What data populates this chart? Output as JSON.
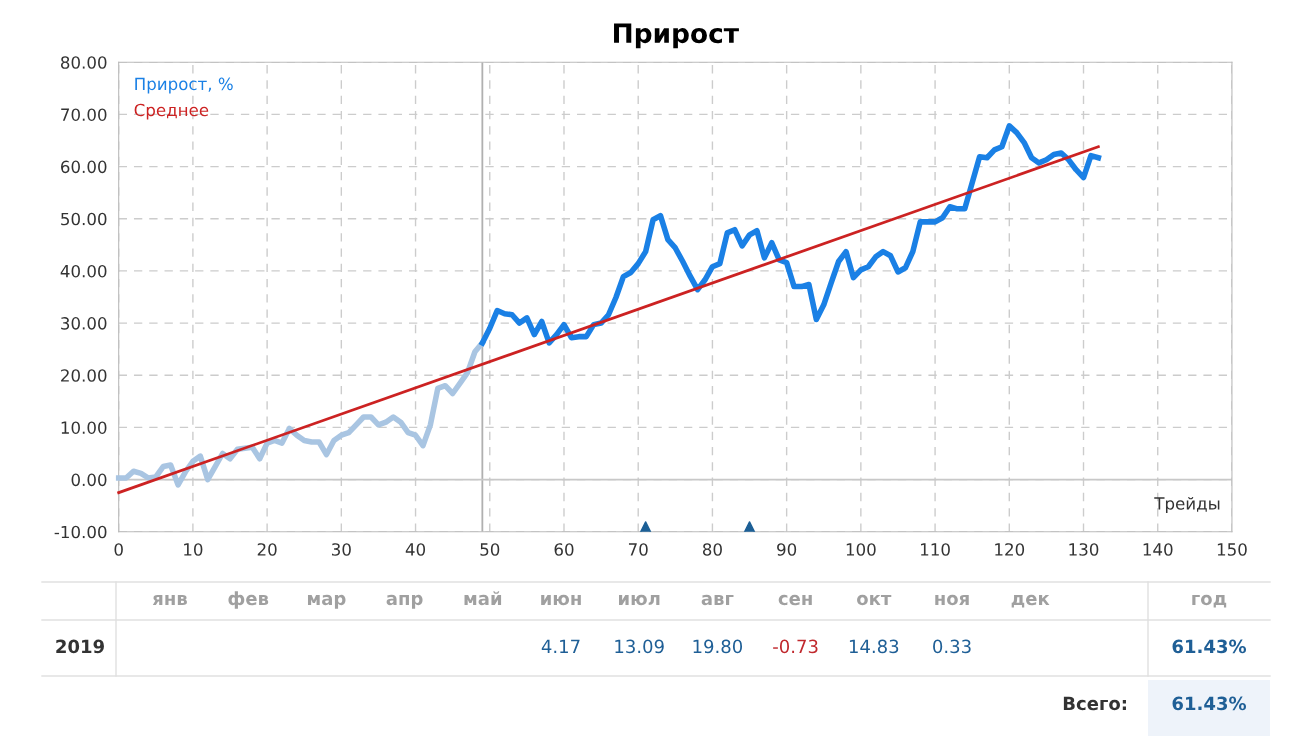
{
  "chart_data": {
    "type": "line",
    "title": "Прирост",
    "xlabel": "Трейды",
    "xlim": [
      0,
      150
    ],
    "xticks": [
      0,
      10,
      20,
      30,
      40,
      50,
      60,
      70,
      80,
      90,
      100,
      110,
      120,
      130,
      140,
      150
    ],
    "ylim": [
      -10,
      80
    ],
    "yticks": [
      {
        "value": -10,
        "label": "-10.00"
      },
      {
        "value": 0,
        "label": "0.00"
      },
      {
        "value": 10,
        "label": "10.00"
      },
      {
        "value": 20,
        "label": "20.00"
      },
      {
        "value": 30,
        "label": "30.00"
      },
      {
        "value": 40,
        "label": "40.00"
      },
      {
        "value": 50,
        "label": "50.00"
      },
      {
        "value": 60,
        "label": "60.00"
      },
      {
        "value": 70,
        "label": "70.00"
      },
      {
        "value": 80,
        "label": "80.00"
      }
    ],
    "grid": true,
    "legend": "top left",
    "marker": "none",
    "line_style": "solid",
    "ref_lines": [
      {
        "axis": "x",
        "value": 49,
        "color": "#b0b0b0"
      },
      {
        "axis": "y",
        "value": 0,
        "color": "#c8c8c8"
      }
    ],
    "series": [
      {
        "color": "#a9c5e2",
        "x": [
          0,
          1,
          2,
          3,
          4,
          5,
          6,
          7,
          8,
          9,
          10,
          11,
          12,
          13,
          14,
          15,
          16,
          17,
          18,
          19,
          20,
          21,
          22,
          23,
          24,
          25,
          26,
          27,
          28,
          29,
          30,
          31,
          32,
          33,
          34,
          35,
          36,
          37,
          38,
          39,
          40,
          41,
          42,
          43,
          44,
          45,
          46,
          47,
          48,
          49
        ],
        "values": [
          0.3,
          0.3,
          1.6,
          1.2,
          0.3,
          0.5,
          2.5,
          2.8,
          -1,
          1.5,
          3.5,
          4.5,
          0,
          2.5,
          5,
          4,
          5.8,
          6,
          6.2,
          4,
          7,
          7.5,
          7,
          9.8,
          8.5,
          7.5,
          7.2,
          7.2,
          4.8,
          7.5,
          8.5,
          9,
          10.5,
          12,
          12,
          10.5,
          11,
          12,
          11,
          9,
          8.5,
          6.5,
          10.5,
          17.5,
          18,
          16.5,
          18.5,
          20.5,
          24.5,
          26.2
        ]
      },
      {
        "name": "Прирост, %",
        "color": "#1a80e5",
        "x": [
          49,
          50,
          51,
          52,
          53,
          54,
          55,
          56,
          57,
          58,
          59,
          60,
          61,
          62,
          63,
          64,
          65,
          66,
          67,
          68,
          69,
          70,
          71,
          72,
          73,
          74,
          75,
          76,
          77,
          78,
          79,
          80,
          81,
          82,
          83,
          84,
          85,
          86,
          87,
          88,
          89,
          90,
          91,
          92,
          93,
          94,
          95,
          96,
          97,
          98,
          99,
          100,
          101,
          102,
          103,
          104,
          105,
          106,
          107,
          108,
          109,
          110,
          111,
          112,
          113,
          114,
          115,
          116,
          117,
          118,
          119,
          120,
          121,
          122,
          123,
          124,
          125,
          126,
          127,
          128,
          129,
          130,
          131,
          132
        ],
        "values": [
          26.2,
          29,
          32.4,
          31.8,
          31.6,
          30,
          31,
          27.8,
          30.3,
          26.2,
          27.8,
          29.7,
          27.2,
          27.4,
          27.4,
          29.7,
          30,
          31.6,
          34.9,
          38.9,
          39.7,
          41.4,
          43.7,
          49.8,
          50.6,
          46,
          44.4,
          41.8,
          39,
          36.4,
          38.3,
          40.8,
          41.4,
          47.3,
          47.9,
          44.8,
          46.9,
          47.7,
          42.5,
          45.4,
          42.1,
          41.6,
          37,
          37,
          37.4,
          30.7,
          33.5,
          37.7,
          41.8,
          43.7,
          38.7,
          40.2,
          40.8,
          42.7,
          43.7,
          42.9,
          39.8,
          40.6,
          43.7,
          49.4,
          49.4,
          49.4,
          50.2,
          52.3,
          51.9,
          51.9,
          56.9,
          61.9,
          61.7,
          63.2,
          63.8,
          67.8,
          66.5,
          64.6,
          61.7,
          60.7,
          61.3,
          62.3,
          62.6,
          61.3,
          59.4,
          57.9,
          62.1,
          61.7
        ]
      },
      {
        "name": "Среднее",
        "color": "#cc2222",
        "x": [
          0,
          132
        ],
        "values": [
          -2.5,
          63.8
        ]
      },
      {
        "type": "scatter",
        "marker": "triangle",
        "color": "#1c5f96",
        "x": [
          71,
          85
        ],
        "values": [
          -10,
          -10
        ]
      }
    ],
    "annotations": [
      "янв",
      "фев",
      "мар",
      "апр",
      "май",
      "июн",
      "июл",
      "авг",
      "сен",
      "окт",
      "ноя",
      "дек",
      "год",
      "2019",
      "4.17",
      "13.09",
      "19.80",
      "-0.73",
      "14.83",
      "0.33",
      "61.43%",
      "Всего:",
      "61.43%"
    ]
  }
}
